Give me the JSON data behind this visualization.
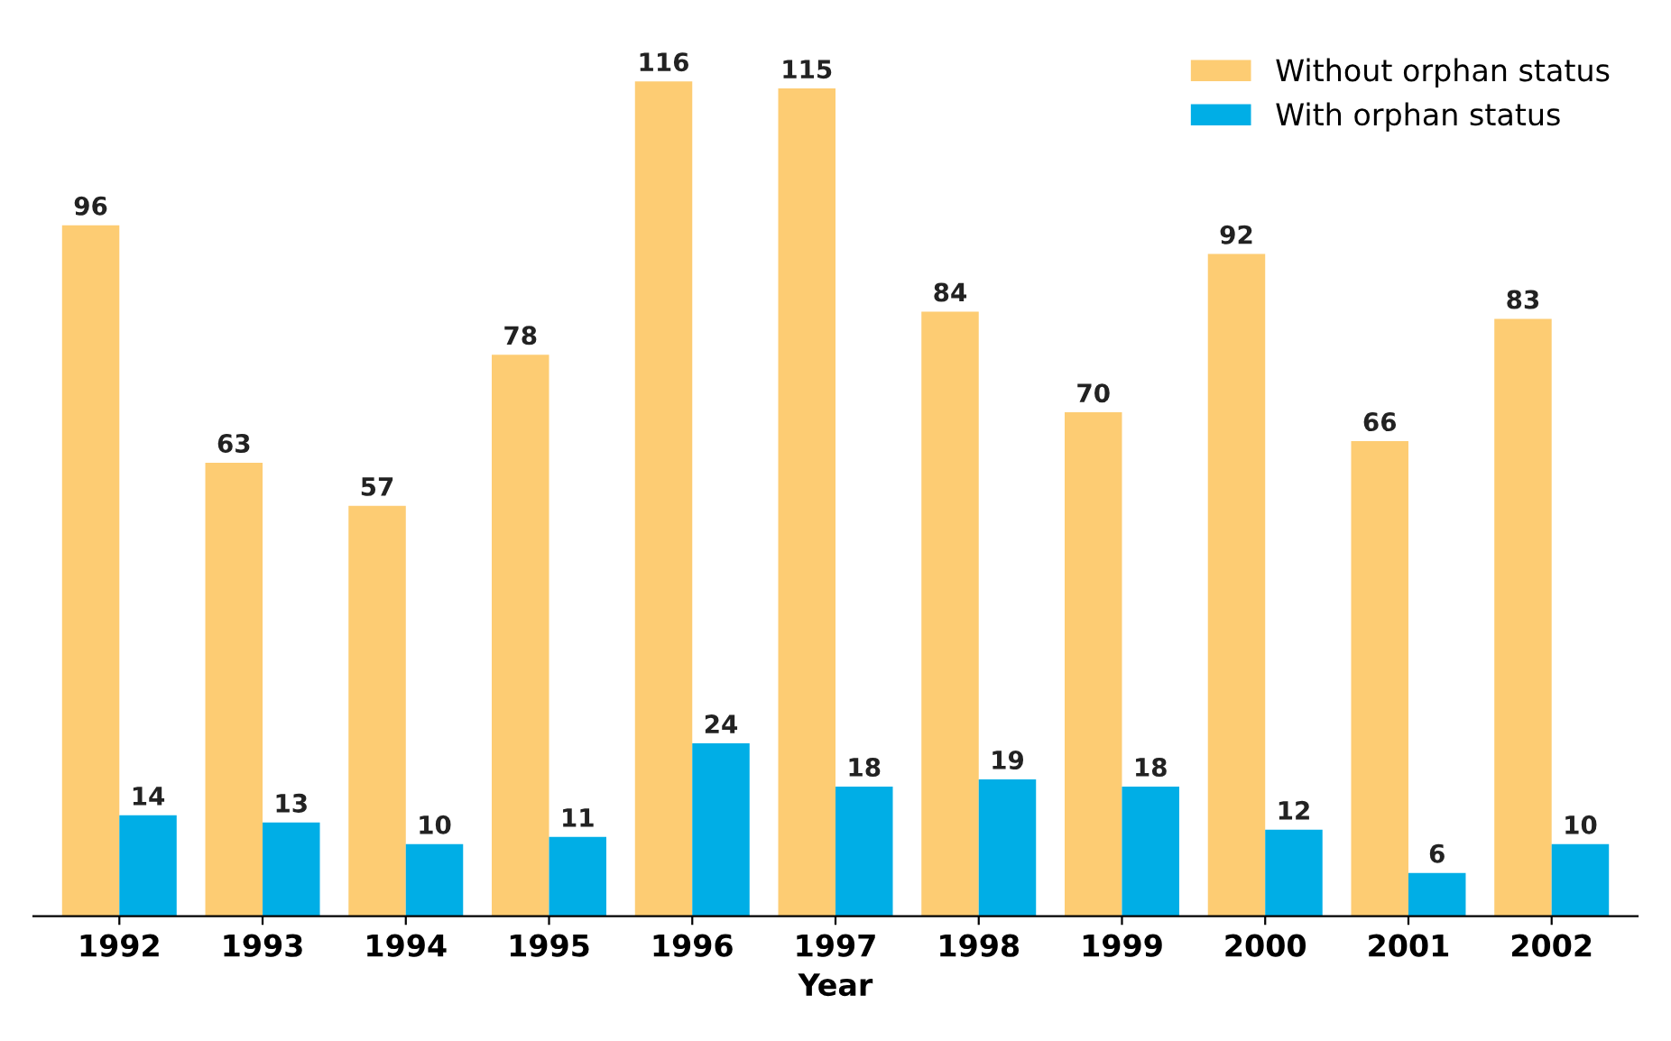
{
  "chart_data": {
    "type": "bar",
    "xlabel": "Year",
    "categories": [
      "1992",
      "1993",
      "1994",
      "1995",
      "1996",
      "1997",
      "1998",
      "1999",
      "2000",
      "2001",
      "2002"
    ],
    "series": [
      {
        "name": "Without orphan status",
        "color": "#fdcc73",
        "values": [
          96,
          63,
          57,
          78,
          116,
          115,
          84,
          70,
          92,
          66,
          83
        ]
      },
      {
        "name": "With orphan status",
        "color": "#00aee6",
        "values": [
          14,
          13,
          10,
          11,
          24,
          18,
          19,
          18,
          12,
          6,
          10
        ]
      }
    ],
    "data_labels": true,
    "legend": "top right",
    "grid": false
  }
}
